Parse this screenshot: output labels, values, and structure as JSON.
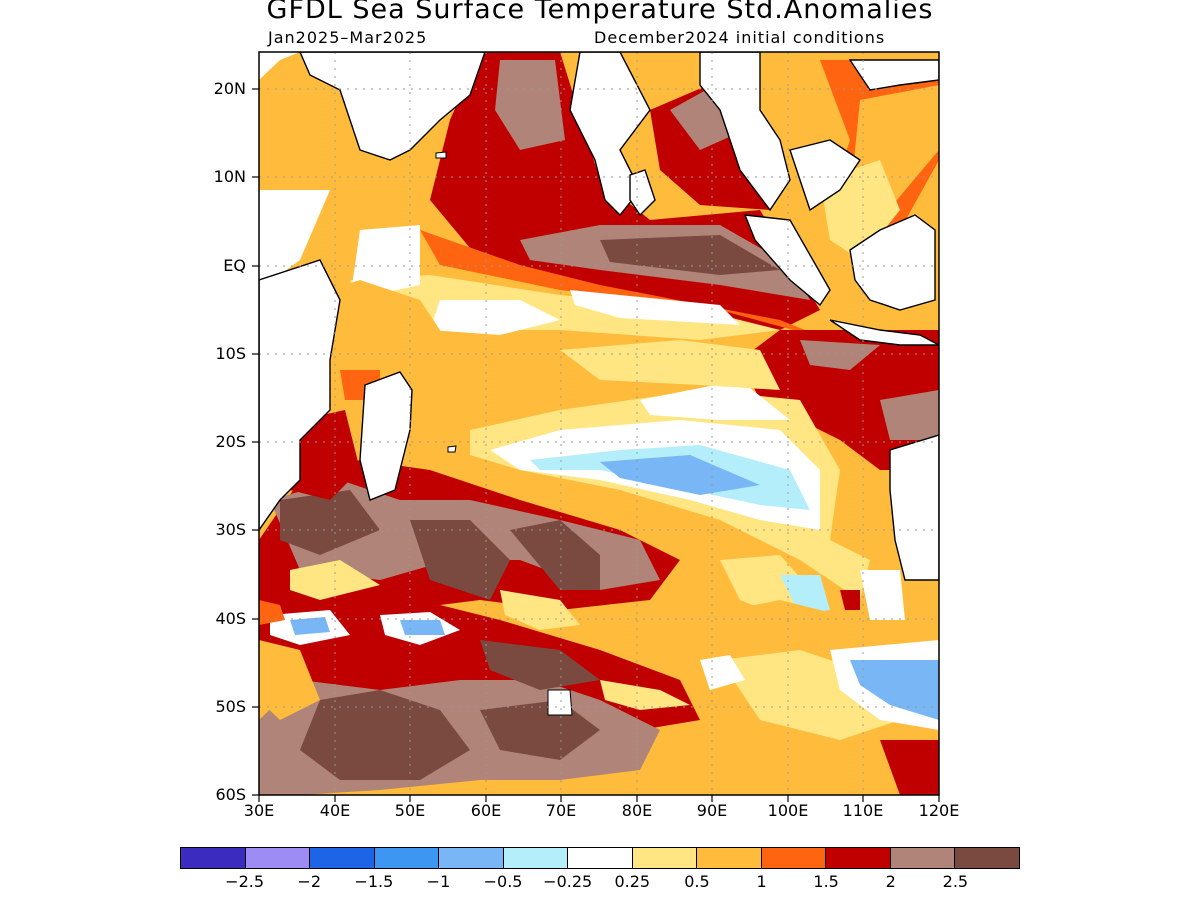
{
  "header": {
    "title": "GFDL Sea Surface Temperature Std.Anomalies",
    "period": "Jan2025–Mar2025",
    "init": "December2024 initial conditions"
  },
  "map": {
    "lat_labels": [
      "20N",
      "10N",
      "EQ",
      "10S",
      "20S",
      "30S",
      "40S",
      "50S",
      "60S"
    ],
    "lon_labels": [
      "30E",
      "40E",
      "50E",
      "60E",
      "70E",
      "80E",
      "90E",
      "100E",
      "110E",
      "120E"
    ],
    "lon_range": [
      30,
      120
    ],
    "lat_range": [
      -60,
      24
    ]
  },
  "legend": {
    "colors": [
      "#3b2bbf",
      "#9d8cf4",
      "#1e64e6",
      "#3c96f2",
      "#78b6f5",
      "#b4eefa",
      "#ffffff",
      "#ffe682",
      "#ffbb3c",
      "#ff6410",
      "#c00000",
      "#b08478",
      "#7a4a40"
    ],
    "labels": [
      "−2.5",
      "−2",
      "−1.5",
      "−1",
      "−0.5",
      "−0.25",
      "0.25",
      "0.5",
      "1",
      "1.5",
      "2",
      "2.5"
    ]
  }
}
